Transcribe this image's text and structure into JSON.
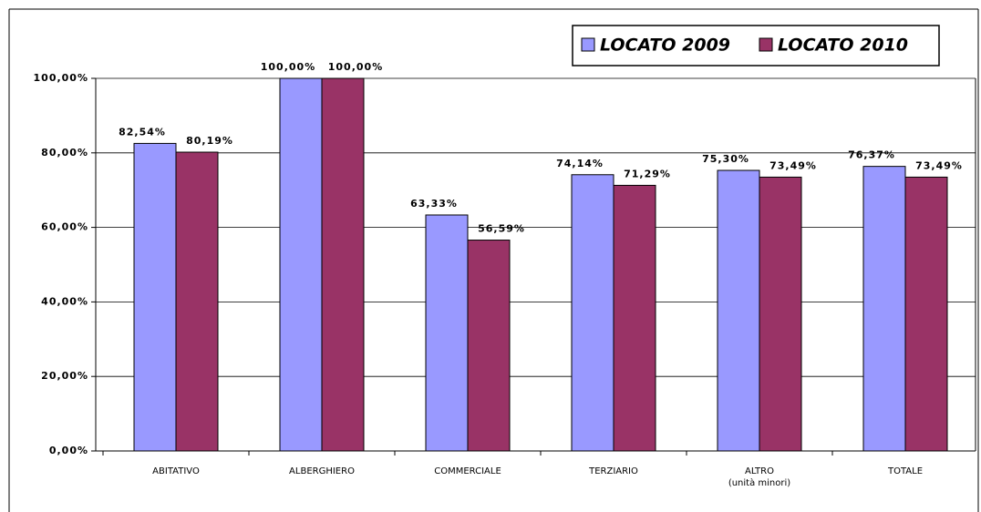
{
  "chart_data": {
    "type": "bar",
    "categories": [
      "ABITATIVO",
      "ALBERGHIERO",
      "COMMERCIALE",
      "TERZIARIO",
      "ALTRO\n(unità minori)",
      "TOTALE"
    ],
    "series": [
      {
        "name": "LOCATO 2009",
        "color": "#9999ff",
        "values": [
          82.54,
          100,
          63.33,
          74.14,
          75.3,
          76.37
        ],
        "value_labels": [
          "82,54%",
          "100,00%",
          "63,33%",
          "74,14%",
          "75,30%",
          "76,37%"
        ]
      },
      {
        "name": "LOCATO 2010",
        "color": "#993366",
        "values": [
          80.19,
          100,
          56.59,
          71.29,
          73.49,
          73.49
        ],
        "value_labels": [
          "80,19%",
          "100,00%",
          "56,59%",
          "71,29%",
          "73,49%",
          "73,49%"
        ]
      }
    ],
    "ylim": [
      0,
      100
    ],
    "yticks": [
      {
        "value": 0,
        "label": "0,00%"
      },
      {
        "value": 20,
        "label": "20,00%"
      },
      {
        "value": 40,
        "label": "40,00%"
      },
      {
        "value": 60,
        "label": "60,00%"
      },
      {
        "value": 80,
        "label": "80,00%"
      },
      {
        "value": 100,
        "label": "100,00%"
      }
    ],
    "grid": true,
    "legend": "top-right"
  }
}
